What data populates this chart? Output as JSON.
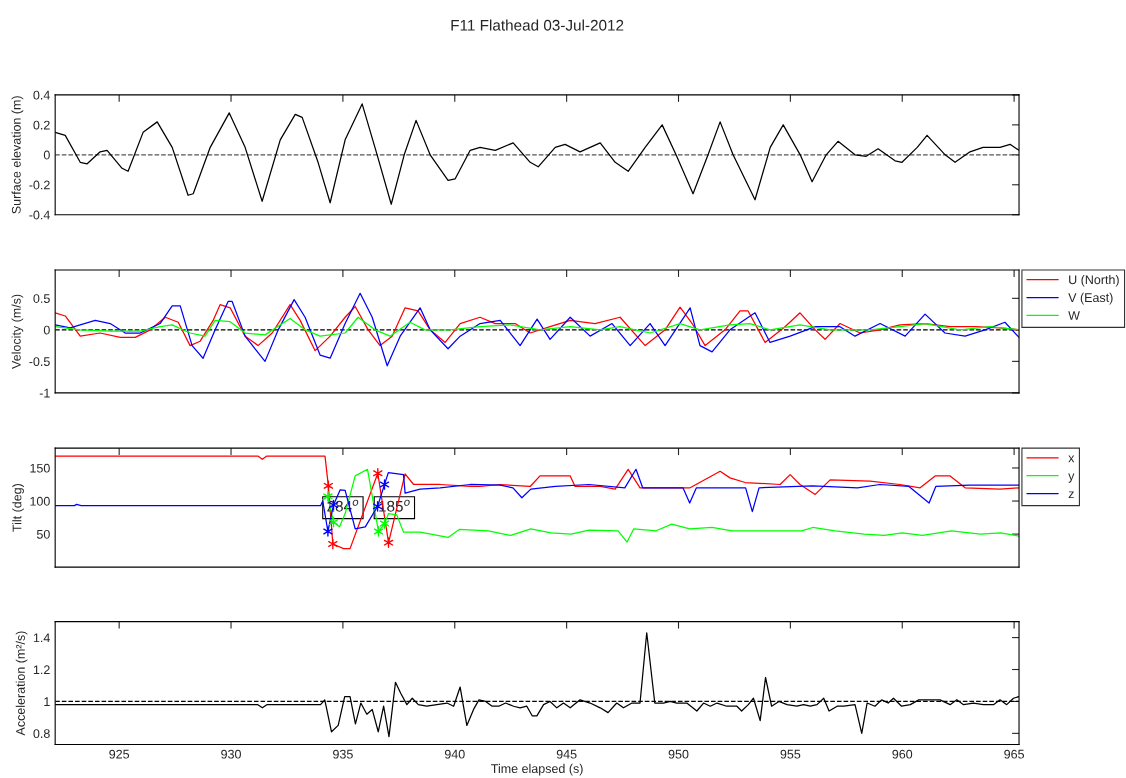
{
  "chart_data": [
    {
      "type": "line",
      "title": "F11 Flathead 03-Jul-2012",
      "ylabel": "Surface elevation (m)",
      "xlim": [
        922.14,
        965.22
      ],
      "xticks": [
        925,
        930,
        935,
        940,
        945,
        950,
        955,
        960,
        965
      ],
      "ylim": [
        -0.4,
        0.4
      ],
      "yticks": [
        -0.4,
        -0.2,
        0,
        0.2,
        0.4
      ],
      "tick_labels": "y",
      "ref_lines": [
        {
          "axis": "y",
          "value": 0,
          "color": "#555555",
          "line_style": "dashed"
        }
      ],
      "series": [
        {
          "color": "#000000",
          "x": [
            922.14,
            922.59,
            923.26,
            923.57,
            924.15,
            924.46,
            925.13,
            925.4,
            926.07,
            926.7,
            927.37,
            928.08,
            928.31,
            929.07,
            929.92,
            930.63,
            931.39,
            932.2,
            932.87,
            933.18,
            933.89,
            934.43,
            935.1,
            935.86,
            936.53,
            937.16,
            937.74,
            938.27,
            938.9,
            939.7,
            940.02,
            940.69,
            941.13,
            941.81,
            942.61,
            943.37,
            943.73,
            944.49,
            944.93,
            945.6,
            946.5,
            947.17,
            947.75,
            948.51,
            949.27,
            949.89,
            950.65,
            951.32,
            951.86,
            952.44,
            953.42,
            954.1,
            954.68,
            955.44,
            955.97,
            956.6,
            957.13,
            957.89,
            958.39,
            958.92,
            959.68,
            959.99,
            960.67,
            961.11,
            961.92,
            962.36,
            963.03,
            963.61,
            964.37,
            964.82,
            965.22
          ],
          "values": [
            0.15,
            0.13,
            -0.05,
            -0.06,
            0.02,
            0.03,
            -0.09,
            -0.11,
            0.15,
            0.22,
            0.05,
            -0.27,
            -0.26,
            0.05,
            0.28,
            0.05,
            -0.31,
            0.1,
            0.27,
            0.25,
            -0.05,
            -0.32,
            0.1,
            0.34,
            0.0,
            -0.33,
            0.0,
            0.23,
            0.0,
            -0.17,
            -0.16,
            0.03,
            0.05,
            0.03,
            0.08,
            -0.05,
            -0.08,
            0.05,
            0.07,
            0.02,
            0.08,
            -0.05,
            -0.11,
            0.05,
            0.2,
            0.0,
            -0.26,
            0.0,
            0.22,
            0.0,
            -0.3,
            0.05,
            0.2,
            0.0,
            -0.18,
            0.0,
            0.09,
            0.0,
            -0.01,
            0.04,
            -0.04,
            -0.05,
            0.05,
            0.13,
            0.0,
            -0.05,
            0.02,
            0.05,
            0.05,
            0.07,
            0.03
          ]
        }
      ]
    },
    {
      "type": "line",
      "ylabel": "Velocity (m/s)",
      "xlim": [
        922.14,
        965.22
      ],
      "xticks": [
        925,
        930,
        935,
        940,
        945,
        950,
        955,
        960,
        965
      ],
      "ylim": [
        -1,
        0.95
      ],
      "yticks": [
        -1,
        -0.5,
        0,
        0.5
      ],
      "tick_labels": "y",
      "legend": "top right",
      "ref_lines": [
        {
          "axis": "y",
          "value": 0,
          "color": "#000000",
          "line_style": "dashed"
        }
      ],
      "series": [
        {
          "name": "U (North)",
          "color": "#ff0000",
          "x": [
            922.14,
            922.59,
            923.26,
            924.15,
            925.05,
            925.72,
            926.39,
            927.06,
            927.64,
            928.17,
            928.62,
            929.2,
            929.51,
            929.96,
            930.63,
            931.21,
            931.84,
            932.64,
            933.09,
            933.76,
            934.43,
            935.1,
            935.55,
            936.13,
            936.66,
            937.2,
            937.78,
            938.36,
            938.9,
            939.57,
            940.24,
            941.13,
            941.81,
            942.7,
            943.37,
            944.26,
            945.16,
            946.27,
            947.39,
            948.51,
            949.4,
            950.07,
            950.61,
            951.19,
            952.08,
            952.75,
            953.11,
            953.87,
            954.76,
            955.43,
            956.11,
            956.55,
            957.22,
            958.12,
            959.01,
            959.9,
            961.02,
            962.14,
            963.25,
            964.37,
            965.22
          ],
          "values": [
            0.27,
            0.22,
            -0.1,
            -0.05,
            -0.12,
            -0.12,
            0.0,
            0.2,
            0.12,
            -0.25,
            -0.18,
            0.15,
            0.4,
            0.35,
            -0.1,
            -0.25,
            -0.05,
            0.4,
            0.15,
            -0.33,
            -0.1,
            0.2,
            0.37,
            0.0,
            -0.25,
            -0.1,
            0.35,
            0.3,
            0.0,
            -0.2,
            0.1,
            0.2,
            0.1,
            0.1,
            -0.05,
            0.05,
            0.15,
            0.1,
            0.2,
            -0.25,
            0.0,
            0.36,
            0.1,
            -0.25,
            0.0,
            0.3,
            0.3,
            -0.2,
            0.05,
            0.27,
            0.0,
            -0.15,
            0.1,
            -0.05,
            0.0,
            0.08,
            0.1,
            0.05,
            0.05,
            0.03,
            0.0
          ]
        },
        {
          "name": "V (East)",
          "color": "#0000ff",
          "x": [
            922.14,
            922.81,
            923.93,
            924.6,
            925.27,
            925.94,
            926.83,
            927.37,
            927.73,
            928.26,
            928.75,
            929.29,
            929.87,
            930.05,
            930.63,
            931.52,
            932.11,
            932.82,
            933.31,
            933.98,
            934.43,
            935.1,
            935.77,
            936.31,
            936.98,
            937.56,
            938.45,
            938.9,
            939.7,
            940.24,
            941.13,
            942.03,
            942.92,
            943.68,
            944.26,
            945.16,
            946.05,
            947.03,
            947.84,
            948.73,
            949.4,
            950.52,
            950.96,
            951.5,
            952.3,
            953.42,
            954.09,
            954.99,
            956.11,
            957.22,
            957.89,
            959.01,
            960.13,
            961.02,
            961.91,
            962.81,
            963.7,
            964.59,
            965.22
          ],
          "values": [
            0.08,
            0.03,
            0.15,
            0.1,
            -0.05,
            -0.05,
            0.1,
            0.38,
            0.38,
            -0.25,
            -0.45,
            0.0,
            0.45,
            0.45,
            -0.1,
            -0.5,
            0.0,
            0.48,
            0.2,
            -0.4,
            -0.45,
            0.1,
            0.58,
            0.2,
            -0.57,
            -0.1,
            0.35,
            0.0,
            -0.3,
            -0.1,
            0.1,
            0.15,
            -0.25,
            0.17,
            -0.15,
            0.2,
            -0.1,
            0.1,
            -0.25,
            0.1,
            -0.25,
            0.35,
            -0.25,
            -0.35,
            0.0,
            0.27,
            -0.2,
            -0.1,
            0.05,
            0.05,
            -0.1,
            0.1,
            -0.1,
            0.25,
            -0.05,
            -0.1,
            0.0,
            0.12,
            -0.12
          ]
        },
        {
          "name": "W",
          "color": "#00ff00",
          "x": [
            922.14,
            923.26,
            924.6,
            925.94,
            926.83,
            927.37,
            928.17,
            928.84,
            929.29,
            929.96,
            930.63,
            931.52,
            932.64,
            933.31,
            933.98,
            935.1,
            935.68,
            936.44,
            937.11,
            938.0,
            938.67,
            939.79,
            941.13,
            942.47,
            943.81,
            945.16,
            946.5,
            947.39,
            948.73,
            950.07,
            950.96,
            952.3,
            953.2,
            954.09,
            955.43,
            956.78,
            958.56,
            959.9,
            961.02,
            962.58,
            963.92,
            965.22
          ],
          "values": [
            0.05,
            0.0,
            -0.02,
            -0.02,
            0.05,
            0.08,
            -0.05,
            -0.1,
            0.15,
            0.13,
            -0.05,
            -0.08,
            0.18,
            0.0,
            -0.1,
            -0.05,
            0.2,
            0.0,
            -0.1,
            0.12,
            0.0,
            0.0,
            0.05,
            0.08,
            0.0,
            0.05,
            0.0,
            0.05,
            -0.05,
            0.1,
            0.0,
            0.08,
            0.1,
            0.0,
            0.08,
            0.0,
            0.0,
            0.05,
            0.1,
            0.0,
            0.05,
            0.0
          ]
        }
      ]
    },
    {
      "type": "line",
      "ylabel": "Tilt (deg)",
      "xlim": [
        922.14,
        965.22
      ],
      "xticks": [
        925,
        930,
        935,
        940,
        945,
        950,
        955,
        960,
        965
      ],
      "ylim": [
        0,
        180
      ],
      "yticks": [
        50,
        100,
        150
      ],
      "tick_labels": "y",
      "legend": "top right",
      "annotations": [
        {
          "text": "284$^{o}$",
          "x": 935.0,
          "y": 90
        },
        {
          "text": "185$^{o}$",
          "x": 937.3,
          "y": 90
        }
      ],
      "series": [
        {
          "name": "x",
          "color": "#ff0000",
          "x": [
            922.14,
            931.2,
            931.4,
            931.6,
            934.2,
            934.35,
            934.55,
            935.03,
            935.32,
            936.56,
            937.04,
            937.78,
            938.16,
            939.35,
            940.69,
            941.13,
            942.03,
            943.37,
            943.81,
            945.16,
            945.38,
            946.5,
            947.17,
            947.75,
            948.28,
            950.52,
            951.86,
            952.3,
            952.98,
            954.54,
            954.99,
            955.43,
            956.11,
            956.78,
            958.56,
            959.9,
            960.8,
            961.47,
            962.14,
            962.81,
            964.37,
            965.22
          ],
          "values": [
            168,
            168,
            163,
            168,
            168,
            123,
            35,
            28,
            28,
            142,
            37,
            141,
            125,
            125,
            122,
            122,
            125,
            122,
            138,
            138,
            122,
            122,
            118,
            148,
            120,
            120,
            145,
            135,
            128,
            125,
            140,
            125,
            110,
            132,
            130,
            125,
            120,
            138,
            138,
            120,
            118,
            120
          ]
        },
        {
          "name": "y",
          "color": "#00ff00",
          "x": [
            934.1,
            934.33,
            934.58,
            934.85,
            935.1,
            935.55,
            936.1,
            936.59,
            936.86,
            937.04,
            937.41,
            937.71,
            938.45,
            939.7,
            940.2,
            941.5,
            942.5,
            943.4,
            944.3,
            945.2,
            946.0,
            947.3,
            947.7,
            948.0,
            949.0,
            949.7,
            950.5,
            951.5,
            952.4,
            954.0,
            955.5,
            956.0,
            957.0,
            958.3,
            959.2,
            960.0,
            960.9,
            962.2,
            963.5,
            964.4,
            965.22
          ],
          "values": [
            102,
            107,
            68,
            61,
            81,
            138,
            148,
            54,
            66,
            81,
            79,
            53,
            53,
            45,
            57,
            55,
            48,
            58,
            52,
            50,
            56,
            55,
            38,
            58,
            55,
            65,
            58,
            60,
            55,
            55,
            55,
            60,
            55,
            50,
            48,
            52,
            48,
            55,
            50,
            52,
            47
          ]
        },
        {
          "name": "z",
          "color": "#0000ff",
          "x": [
            922.14,
            923.0,
            923.1,
            923.3,
            934.0,
            934.1,
            934.33,
            934.58,
            934.88,
            935.1,
            935.55,
            936.0,
            936.55,
            936.86,
            937.03,
            937.71,
            937.78,
            938.45,
            939.35,
            940.69,
            942.03,
            942.6,
            943.0,
            943.4,
            944.5,
            946.0,
            947.6,
            948.1,
            948.4,
            950.2,
            950.5,
            950.8,
            953.0,
            953.3,
            953.6,
            956.0,
            958.0,
            959.0,
            960.3,
            961.2,
            961.5,
            963.0,
            965.22
          ],
          "values": [
            93,
            93,
            95,
            93,
            93,
            100,
            54,
            94,
            117,
            116,
            58,
            61,
            92,
            125,
            143,
            140,
            112,
            118,
            120,
            125,
            124,
            120,
            105,
            118,
            122,
            125,
            120,
            148,
            120,
            120,
            97,
            120,
            120,
            84,
            120,
            123,
            120,
            125,
            122,
            97,
            122,
            124,
            124
          ]
        },
        {
          "type": "scatter",
          "marker": "cross",
          "color": "#ff0000",
          "x": [
            934.35,
            934.55,
            936.56,
            937.04
          ],
          "values": [
            123,
            35,
            142,
            37
          ]
        },
        {
          "type": "scatter",
          "marker": "cross",
          "color": "#00ff00",
          "x": [
            934.33,
            934.58,
            936.59,
            936.86
          ],
          "values": [
            107,
            68,
            54,
            66
          ]
        },
        {
          "type": "scatter",
          "marker": "cross",
          "color": "#0000ff",
          "x": [
            934.33,
            934.58,
            936.55,
            936.86
          ],
          "values": [
            54,
            94,
            92,
            125
          ]
        }
      ]
    },
    {
      "type": "line",
      "xlabel": "Time elapsed (s)",
      "ylabel": "Acceleration (m²/s)",
      "xlim": [
        922.14,
        965.22
      ],
      "xticks": [
        925,
        930,
        935,
        940,
        945,
        950,
        955,
        960,
        965
      ],
      "ylim": [
        0.73,
        1.5
      ],
      "yticks": [
        0.8,
        1,
        1.2,
        1.4
      ],
      "ref_lines": [
        {
          "axis": "y",
          "value": 1,
          "color": "#000000",
          "line_style": "dashed"
        }
      ],
      "series": [
        {
          "color": "#000000",
          "x": [
            922.14,
            931.2,
            931.4,
            931.6,
            934.0,
            934.19,
            934.49,
            934.79,
            935.08,
            935.32,
            935.56,
            935.8,
            936.07,
            936.31,
            936.58,
            936.82,
            937.06,
            937.35,
            937.59,
            937.86,
            938.1,
            938.37,
            938.75,
            939.2,
            939.65,
            939.95,
            940.24,
            940.54,
            940.84,
            941.08,
            941.38,
            941.67,
            941.97,
            942.27,
            942.63,
            942.92,
            943.22,
            943.46,
            943.67,
            943.97,
            944.26,
            944.56,
            944.86,
            945.16,
            945.6,
            946.05,
            946.5,
            946.85,
            947.24,
            947.54,
            947.92,
            948.28,
            948.58,
            948.94,
            949.33,
            949.63,
            949.92,
            950.13,
            950.37,
            950.82,
            951.12,
            951.42,
            951.72,
            952.16,
            952.61,
            952.82,
            953.12,
            953.35,
            953.65,
            953.89,
            954.16,
            954.49,
            954.85,
            955.29,
            955.59,
            955.89,
            956.19,
            956.49,
            956.73,
            957.09,
            957.39,
            957.89,
            958.19,
            958.43,
            958.78,
            959.08,
            959.37,
            959.61,
            959.97,
            960.36,
            960.74,
            961.25,
            961.69,
            962.14,
            962.44,
            962.74,
            963.18,
            963.63,
            964.08,
            964.37,
            964.67,
            964.97,
            965.21
          ],
          "values": [
            0.98,
            0.98,
            0.96,
            0.98,
            0.98,
            1.01,
            0.81,
            0.85,
            1.03,
            1.03,
            0.86,
            0.99,
            0.92,
            0.95,
            0.81,
            0.97,
            0.78,
            1.12,
            1.05,
            0.98,
            1.02,
            0.98,
            0.97,
            0.98,
            0.99,
            0.97,
            1.09,
            0.85,
            0.95,
            1.01,
            1.0,
            0.97,
            0.97,
            0.99,
            0.97,
            0.96,
            0.97,
            0.91,
            0.91,
            0.98,
            1.0,
            0.96,
            0.99,
            0.96,
            1.01,
            0.99,
            0.96,
            0.93,
            0.99,
            0.96,
            0.99,
            0.99,
            1.43,
            0.99,
            0.99,
            1.0,
            0.99,
            0.99,
            0.99,
            0.94,
            0.99,
            0.97,
            0.99,
            0.97,
            0.97,
            0.94,
            0.98,
            1.02,
            0.88,
            1.15,
            0.97,
            1.0,
            0.98,
            0.97,
            0.98,
            0.97,
            0.98,
            1.02,
            0.94,
            0.97,
            0.97,
            0.98,
            0.8,
            0.99,
            0.97,
            1.01,
            0.99,
            1.02,
            0.97,
            0.98,
            1.01,
            1.01,
            1.01,
            0.98,
            1.01,
            0.98,
            0.99,
            0.98,
            0.98,
            1.01,
            0.98,
            1.02,
            1.03
          ]
        }
      ]
    }
  ]
}
